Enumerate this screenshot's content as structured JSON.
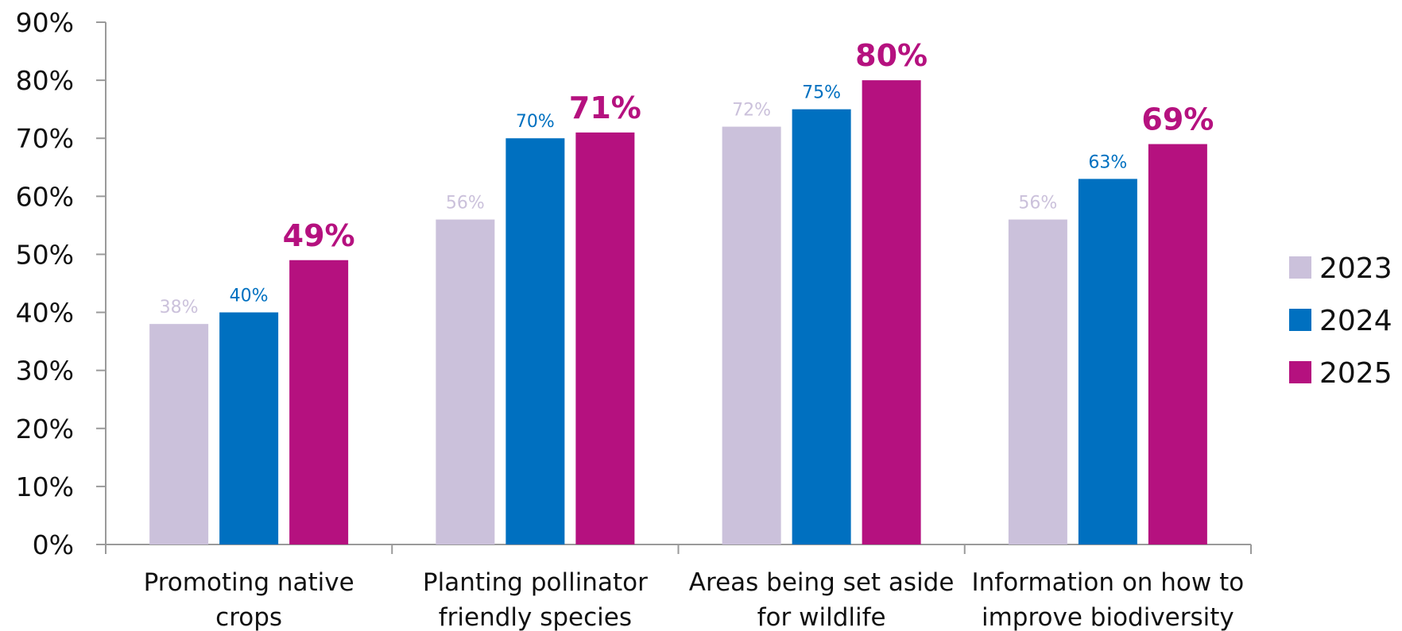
{
  "chart_data": {
    "type": "bar",
    "categories": [
      [
        "Promoting native",
        "crops"
      ],
      [
        "Planting pollinator",
        "friendly species"
      ],
      [
        "Areas being set aside",
        "for wildlife"
      ],
      [
        "Information on how to",
        "improve biodiversity"
      ]
    ],
    "series": [
      {
        "name": "2023",
        "color": "#cbc1db",
        "values": [
          38,
          56,
          72,
          56
        ],
        "labels": [
          "38%",
          "56%",
          "72%",
          "56%"
        ]
      },
      {
        "name": "2024",
        "color": "#0070c0",
        "values": [
          40,
          70,
          75,
          63
        ],
        "labels": [
          "40%",
          "70%",
          "75%",
          "63%"
        ]
      },
      {
        "name": "2025",
        "color": "#b5117f",
        "values": [
          49,
          71,
          80,
          69
        ],
        "labels": [
          "49%",
          "71%",
          "80%",
          "69%"
        ]
      }
    ],
    "ylim": [
      0,
      90
    ],
    "yticks": [
      "0%",
      "10%",
      "20%",
      "30%",
      "40%",
      "50%",
      "60%",
      "70%",
      "80%",
      "90%"
    ],
    "legend": "right",
    "grid": false
  }
}
